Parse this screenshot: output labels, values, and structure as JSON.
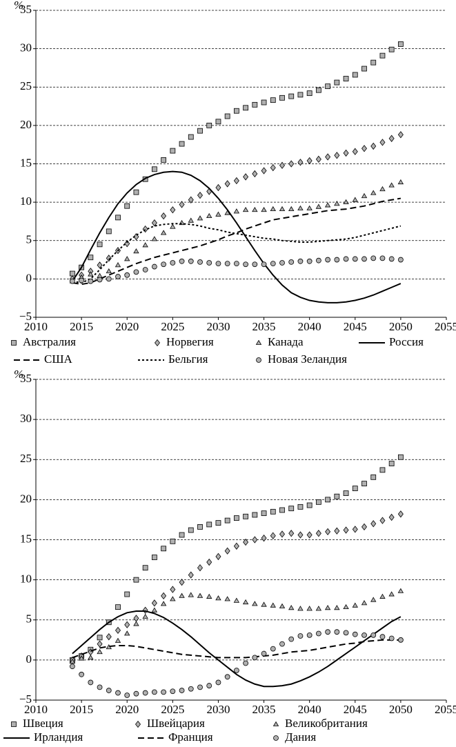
{
  "chart_data": [
    {
      "type": "line",
      "ylabel": "%",
      "x": [
        2014,
        2015,
        2016,
        2017,
        2018,
        2019,
        2020,
        2021,
        2022,
        2023,
        2024,
        2025,
        2026,
        2027,
        2028,
        2029,
        2030,
        2031,
        2032,
        2033,
        2034,
        2035,
        2036,
        2037,
        2038,
        2039,
        2040,
        2041,
        2042,
        2043,
        2044,
        2045,
        2046,
        2047,
        2048,
        2049,
        2050
      ],
      "xlim": [
        2010,
        2055
      ],
      "xticks": [
        2010,
        2015,
        2020,
        2025,
        2030,
        2035,
        2040,
        2045,
        2050,
        2055
      ],
      "ylim": [
        -5,
        35
      ],
      "yticks": [
        {
          "value": -5,
          "label": "−5"
        },
        0,
        5,
        10,
        15,
        20,
        25,
        30,
        35
      ],
      "grid": true,
      "series": [
        {
          "name": "Австралия",
          "marker": "square",
          "color": "#b0b0b0",
          "values": [
            0.7,
            1.5,
            2.8,
            4.5,
            6.2,
            8.0,
            9.5,
            11.3,
            13.0,
            14.3,
            15.5,
            16.7,
            17.6,
            18.5,
            19.3,
            20.0,
            20.5,
            21.2,
            21.9,
            22.3,
            22.7,
            23.0,
            23.3,
            23.6,
            23.8,
            24.0,
            24.2,
            24.6,
            25.1,
            25.6,
            26.1,
            26.6,
            27.4,
            28.2,
            29.1,
            29.9,
            30.6
          ]
        },
        {
          "name": "Норвегия",
          "marker": "diamond",
          "color": "#b0b0b0",
          "values": [
            0.0,
            0.5,
            1.0,
            1.8,
            2.7,
            3.7,
            4.6,
            5.5,
            6.5,
            7.3,
            8.2,
            9.0,
            9.7,
            10.3,
            10.9,
            11.4,
            11.9,
            12.4,
            12.8,
            13.3,
            13.7,
            14.1,
            14.5,
            14.8,
            15.0,
            15.2,
            15.4,
            15.6,
            15.9,
            16.1,
            16.4,
            16.6,
            17.0,
            17.3,
            17.8,
            18.3,
            18.8
          ]
        },
        {
          "name": "Канада",
          "marker": "triangle",
          "color": "#b0b0b0",
          "values": [
            -0.3,
            0.2,
            0.6,
            0.4,
            1.0,
            1.8,
            2.6,
            3.6,
            4.4,
            5.2,
            6.0,
            6.8,
            7.3,
            7.6,
            7.9,
            8.2,
            8.4,
            8.6,
            8.8,
            9.0,
            9.0,
            9.0,
            9.1,
            9.1,
            9.1,
            9.2,
            9.2,
            9.4,
            9.6,
            9.8,
            10.0,
            10.3,
            10.8,
            11.2,
            11.7,
            12.2,
            12.6
          ]
        },
        {
          "name": "Россия",
          "line": "solid",
          "color": "#000000",
          "values": [
            -0.3,
            1.5,
            3.8,
            6.0,
            8.0,
            9.8,
            11.2,
            12.3,
            13.1,
            13.6,
            13.9,
            14.0,
            13.9,
            13.5,
            12.8,
            11.8,
            10.5,
            9.0,
            7.3,
            5.5,
            3.7,
            2.0,
            0.5,
            -0.8,
            -1.8,
            -2.4,
            -2.8,
            -3.0,
            -3.1,
            -3.1,
            -3.0,
            -2.8,
            -2.5,
            -2.1,
            -1.6,
            -1.1,
            -0.6
          ]
        },
        {
          "name": "США",
          "line": "dashed",
          "color": "#000000",
          "values": [
            -0.5,
            -0.7,
            -0.5,
            0.0,
            0.5,
            1.0,
            1.5,
            2.0,
            2.4,
            2.8,
            3.1,
            3.4,
            3.7,
            4.0,
            4.3,
            4.7,
            5.1,
            5.6,
            6.0,
            6.5,
            6.9,
            7.3,
            7.7,
            7.9,
            8.1,
            8.3,
            8.5,
            8.7,
            8.9,
            9.0,
            9.1,
            9.3,
            9.5,
            9.8,
            10.1,
            10.3,
            10.5
          ]
        },
        {
          "name": "Бельгия",
          "line": "dotted",
          "color": "#000000",
          "values": [
            -0.3,
            -0.5,
            0.0,
            1.2,
            2.5,
            3.7,
            4.8,
            5.7,
            6.4,
            6.9,
            7.1,
            7.2,
            7.2,
            7.1,
            6.9,
            6.6,
            6.4,
            6.1,
            5.9,
            5.7,
            5.5,
            5.3,
            5.2,
            5.0,
            4.9,
            4.8,
            4.8,
            4.9,
            5.0,
            5.1,
            5.2,
            5.4,
            5.7,
            6.0,
            6.3,
            6.6,
            6.9
          ]
        },
        {
          "name": "Новая Зеландия",
          "marker": "circle",
          "color": "#b0b0b0",
          "values": [
            -0.3,
            -0.2,
            -0.3,
            -0.1,
            0.0,
            0.3,
            0.5,
            0.9,
            1.2,
            1.6,
            1.9,
            2.1,
            2.3,
            2.3,
            2.2,
            2.1,
            2.0,
            2.0,
            2.0,
            1.9,
            1.9,
            1.9,
            2.0,
            2.1,
            2.2,
            2.3,
            2.3,
            2.4,
            2.5,
            2.5,
            2.6,
            2.6,
            2.6,
            2.7,
            2.7,
            2.6,
            2.5
          ]
        }
      ]
    },
    {
      "type": "line",
      "ylabel": "%",
      "x": [
        2014,
        2015,
        2016,
        2017,
        2018,
        2019,
        2020,
        2021,
        2022,
        2023,
        2024,
        2025,
        2026,
        2027,
        2028,
        2029,
        2030,
        2031,
        2032,
        2033,
        2034,
        2035,
        2036,
        2037,
        2038,
        2039,
        2040,
        2041,
        2042,
        2043,
        2044,
        2045,
        2046,
        2047,
        2048,
        2049,
        2050
      ],
      "xlim": [
        2010,
        2055
      ],
      "xticks": [
        2010,
        2015,
        2020,
        2025,
        2030,
        2035,
        2040,
        2045,
        2050,
        2055
      ],
      "ylim": [
        -5,
        35
      ],
      "yticks": [
        {
          "value": -5,
          "label": "−5"
        },
        0,
        5,
        10,
        15,
        20,
        25,
        30,
        35
      ],
      "grid": true,
      "series": [
        {
          "name": "Швеция",
          "marker": "square",
          "color": "#b0b0b0",
          "values": [
            0.0,
            0.5,
            1.3,
            2.8,
            4.7,
            6.6,
            8.2,
            10.0,
            11.5,
            12.8,
            13.9,
            14.8,
            15.6,
            16.2,
            16.6,
            16.9,
            17.1,
            17.4,
            17.7,
            17.9,
            18.1,
            18.3,
            18.5,
            18.7,
            18.9,
            19.1,
            19.3,
            19.7,
            20.0,
            20.4,
            20.8,
            21.4,
            22.0,
            22.8,
            23.7,
            24.5,
            25.3
          ]
        },
        {
          "name": "Швейцария",
          "marker": "diamond",
          "color": "#b0b0b0",
          "values": [
            0.0,
            0.5,
            1.0,
            2.0,
            2.9,
            3.7,
            4.4,
            5.2,
            6.2,
            7.1,
            8.0,
            8.8,
            9.7,
            10.6,
            11.5,
            12.2,
            12.9,
            13.6,
            14.2,
            14.7,
            15.0,
            15.2,
            15.5,
            15.7,
            15.8,
            15.6,
            15.6,
            15.8,
            16.0,
            16.1,
            16.2,
            16.3,
            16.6,
            17.0,
            17.4,
            17.8,
            18.2
          ]
        },
        {
          "name": "Великобритания",
          "marker": "triangle",
          "color": "#b0b0b0",
          "values": [
            -0.2,
            0.2,
            0.3,
            1.0,
            1.6,
            2.4,
            3.3,
            4.5,
            5.4,
            6.2,
            7.0,
            7.6,
            8.0,
            8.1,
            8.0,
            7.9,
            7.7,
            7.6,
            7.4,
            7.2,
            7.0,
            6.9,
            6.8,
            6.7,
            6.5,
            6.4,
            6.4,
            6.4,
            6.5,
            6.5,
            6.6,
            6.8,
            7.1,
            7.5,
            7.9,
            8.2,
            8.6
          ]
        },
        {
          "name": "Ирландия",
          "line": "solid",
          "color": "#000000",
          "values": [
            0.8,
            1.8,
            2.8,
            3.8,
            4.7,
            5.4,
            5.9,
            6.1,
            6.1,
            5.8,
            5.3,
            4.6,
            3.8,
            2.9,
            1.9,
            0.9,
            0.0,
            -0.9,
            -1.8,
            -2.5,
            -3.0,
            -3.3,
            -3.3,
            -3.2,
            -3.0,
            -2.6,
            -2.1,
            -1.5,
            -0.8,
            0.0,
            0.8,
            1.6,
            2.4,
            3.2,
            4.0,
            4.8,
            5.4
          ]
        },
        {
          "name": "Франция",
          "line": "dashed",
          "color": "#000000",
          "values": [
            0.3,
            0.7,
            1.1,
            1.5,
            1.7,
            1.8,
            1.8,
            1.7,
            1.5,
            1.3,
            1.1,
            0.9,
            0.7,
            0.6,
            0.5,
            0.4,
            0.3,
            0.3,
            0.3,
            0.3,
            0.4,
            0.5,
            0.6,
            0.8,
            1.0,
            1.1,
            1.2,
            1.4,
            1.6,
            1.8,
            2.0,
            2.1,
            2.3,
            2.4,
            2.5,
            2.5,
            2.5
          ]
        },
        {
          "name": "Дания",
          "marker": "circle",
          "color": "#b0b0b0",
          "values": [
            -0.8,
            -1.8,
            -2.8,
            -3.4,
            -3.8,
            -4.1,
            -4.4,
            -4.2,
            -4.1,
            -4.0,
            -4.0,
            -3.9,
            -3.8,
            -3.6,
            -3.4,
            -3.2,
            -2.8,
            -2.1,
            -1.3,
            -0.4,
            0.3,
            0.8,
            1.4,
            2.0,
            2.6,
            3.0,
            3.1,
            3.3,
            3.5,
            3.5,
            3.4,
            3.2,
            3.1,
            3.1,
            2.9,
            2.7,
            2.5
          ]
        }
      ]
    }
  ]
}
